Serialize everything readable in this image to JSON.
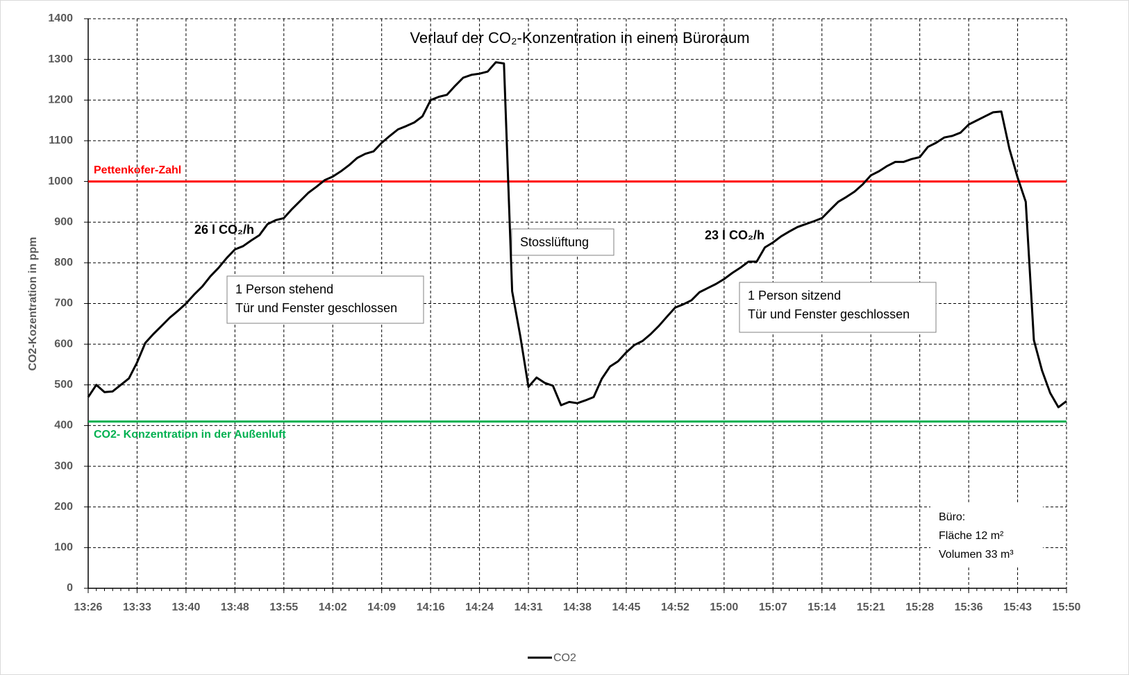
{
  "chart_data": {
    "type": "line",
    "title": "Verlauf der CO₂-Konzentration in einem Büroraum",
    "y_label": "CO2-Kozentration in ppm",
    "categories": [
      "13:26",
      null,
      null,
      null,
      null,
      null,
      "13:33",
      null,
      null,
      null,
      null,
      null,
      "13:40",
      null,
      null,
      null,
      null,
      null,
      "13:48",
      null,
      null,
      null,
      null,
      null,
      "13:55",
      null,
      null,
      null,
      null,
      null,
      "14:02",
      null,
      null,
      null,
      null,
      null,
      "14:09",
      null,
      null,
      null,
      null,
      null,
      "14:16",
      null,
      null,
      null,
      null,
      null,
      "14:24",
      null,
      null,
      null,
      null,
      null,
      "14:31",
      null,
      null,
      null,
      null,
      null,
      "14:38",
      null,
      null,
      null,
      null,
      null,
      "14:45",
      null,
      null,
      null,
      null,
      null,
      "14:52",
      null,
      null,
      null,
      null,
      null,
      "15:00",
      null,
      null,
      null,
      null,
      null,
      "15:07",
      null,
      null,
      null,
      null,
      null,
      "15:14",
      null,
      null,
      null,
      null,
      null,
      "15:21",
      null,
      null,
      null,
      null,
      null,
      "15:28",
      null,
      null,
      null,
      null,
      null,
      "15:36",
      null,
      null,
      null,
      null,
      null,
      "15:43",
      null,
      null,
      null,
      null,
      null,
      "15:50"
    ],
    "series": [
      {
        "name": "CO2",
        "color": "#000000",
        "values": [
          470,
          500,
          482,
          484,
          500,
          516,
          555,
          603,
          625,
          645,
          665,
          682,
          700,
          722,
          742,
          767,
          788,
          812,
          833,
          841,
          855,
          868,
          895,
          905,
          910,
          932,
          952,
          972,
          987,
          1003,
          1012,
          1025,
          1040,
          1058,
          1068,
          1074,
          1095,
          1112,
          1128,
          1136,
          1145,
          1160,
          1200,
          1208,
          1213,
          1235,
          1255,
          1262,
          1265,
          1270,
          1293,
          1290,
          730,
          620,
          495,
          518,
          505,
          498,
          450,
          458,
          455,
          462,
          470,
          515,
          545,
          558,
          580,
          598,
          608,
          625,
          645,
          668,
          690,
          698,
          708,
          728,
          738,
          748,
          760,
          775,
          788,
          803,
          803,
          838,
          850,
          865,
          877,
          888,
          895,
          902,
          910,
          930,
          950,
          962,
          975,
          993,
          1015,
          1025,
          1038,
          1048,
          1048,
          1055,
          1060,
          1085,
          1095,
          1108,
          1112,
          1120,
          1140,
          1150,
          1160,
          1170,
          1172,
          1080,
          1010,
          950,
          610,
          535,
          480,
          445,
          460
        ]
      }
    ],
    "ylim": [
      0,
      1400
    ],
    "yticks": [
      0,
      100,
      200,
      300,
      400,
      500,
      600,
      700,
      800,
      900,
      1000,
      1100,
      1200,
      1300,
      1400
    ],
    "grid": true,
    "legend": "bottom",
    "reference_lines": [
      {
        "label": "Pettenkofer-Zahl",
        "value": 1000,
        "color": "#ff0000"
      },
      {
        "label": "CO2- Konzentration in der Außenluft",
        "value": 410,
        "color": "#00b050"
      }
    ],
    "annotations": [
      {
        "lines": [
          "26 l CO₂/h"
        ]
      },
      {
        "lines": [
          "1 Person stehend",
          "Tür und Fenster geschlossen"
        ]
      },
      {
        "lines": [
          "Stosslüftung"
        ]
      },
      {
        "lines": [
          "23 l CO₂/h"
        ]
      },
      {
        "lines": [
          "1 Person sitzend",
          "Tür und Fenster geschlossen"
        ]
      },
      {
        "lines": [
          "Büro:",
          "Fläche 12 m²",
          "Volumen 33 m³"
        ]
      }
    ]
  }
}
